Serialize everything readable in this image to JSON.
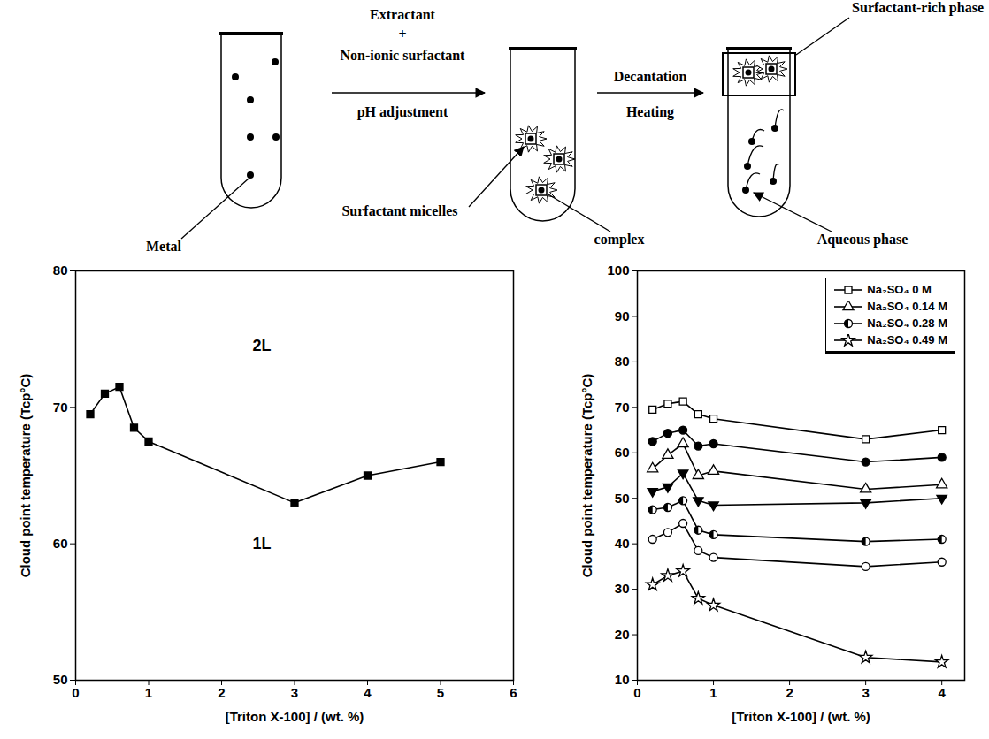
{
  "diagram": {
    "metal": "Metal",
    "extractant": "Extractant",
    "plus": "+",
    "surfactant": "Non-ionic surfactant",
    "ph": "pH adjustment",
    "micelles": "Surfactant micelles",
    "complex": "complex",
    "decantation": "Decantation",
    "heating": "Heating",
    "rich_phase": "Surfactant-rich phase",
    "aqueous": "Aqueous phase"
  },
  "chart_data": [
    {
      "type": "line",
      "x_label": "[Triton X-100] / (wt. %)",
      "y_label": "Cloud point temperature (Tcp°C)",
      "x": [
        0.2,
        0.4,
        0.6,
        0.8,
        1,
        3,
        4,
        5
      ],
      "series": [
        {
          "color": "#000000",
          "marker": "square-filled",
          "values": [
            69.5,
            71,
            71.5,
            68.5,
            67.5,
            63,
            65,
            66
          ]
        }
      ],
      "xlim": [
        0,
        6
      ],
      "xticks": [
        0,
        1,
        2,
        3,
        4,
        5,
        6
      ],
      "ylim": [
        50,
        80
      ],
      "yticks": [
        50,
        60,
        70,
        80
      ],
      "annotations": [
        {
          "text": "2L",
          "x": 2.55,
          "y": 74.5
        },
        {
          "text": "1L",
          "x": 2.55,
          "y": 60
        }
      ]
    },
    {
      "type": "line",
      "x_label": "[Triton X-100] / (wt. %)",
      "y_label": "Cloud point temperature (Tcp°C)",
      "x": [
        0.2,
        0.4,
        0.6,
        0.8,
        1,
        3,
        4
      ],
      "series": [
        {
          "name": "Na₂SO₄ 0 M",
          "color": "#000000",
          "marker": "square-open",
          "values": [
            69.5,
            70.8,
            71.3,
            68.5,
            67.5,
            63,
            65
          ]
        },
        {
          "color": "#000000",
          "marker": "circle-filled",
          "values": [
            62.5,
            64.3,
            65,
            61.5,
            62,
            58,
            59
          ]
        },
        {
          "name": "Na₂SO₄ 0.14 M",
          "color": "#000000",
          "marker": "triangle-open",
          "values": [
            56.5,
            59.5,
            62,
            55,
            56,
            52,
            53
          ]
        },
        {
          "color": "#000000",
          "marker": "triangle-down-filled",
          "values": [
            51.5,
            52.5,
            55.5,
            49.5,
            48.5,
            49,
            50
          ]
        },
        {
          "name": "Na₂SO₄ 0.28 M",
          "color": "#000000",
          "marker": "circle-half",
          "values": [
            47.5,
            48,
            49.5,
            43,
            42,
            40.5,
            41
          ]
        },
        {
          "color": "#000000",
          "marker": "circle-open",
          "values": [
            41,
            42.5,
            44.5,
            38.5,
            37,
            35,
            36
          ]
        },
        {
          "name": "Na₂SO₄ 0.49 M",
          "color": "#000000",
          "marker": "star-open",
          "values": [
            31,
            33,
            34,
            28,
            26.5,
            15,
            14
          ]
        }
      ],
      "xlim": [
        0,
        4.3
      ],
      "xticks": [
        0,
        1,
        2,
        3,
        4
      ],
      "ylim": [
        10,
        100
      ],
      "yticks": [
        10,
        20,
        30,
        40,
        50,
        60,
        70,
        80,
        90,
        100
      ],
      "legend": "top-right"
    }
  ]
}
